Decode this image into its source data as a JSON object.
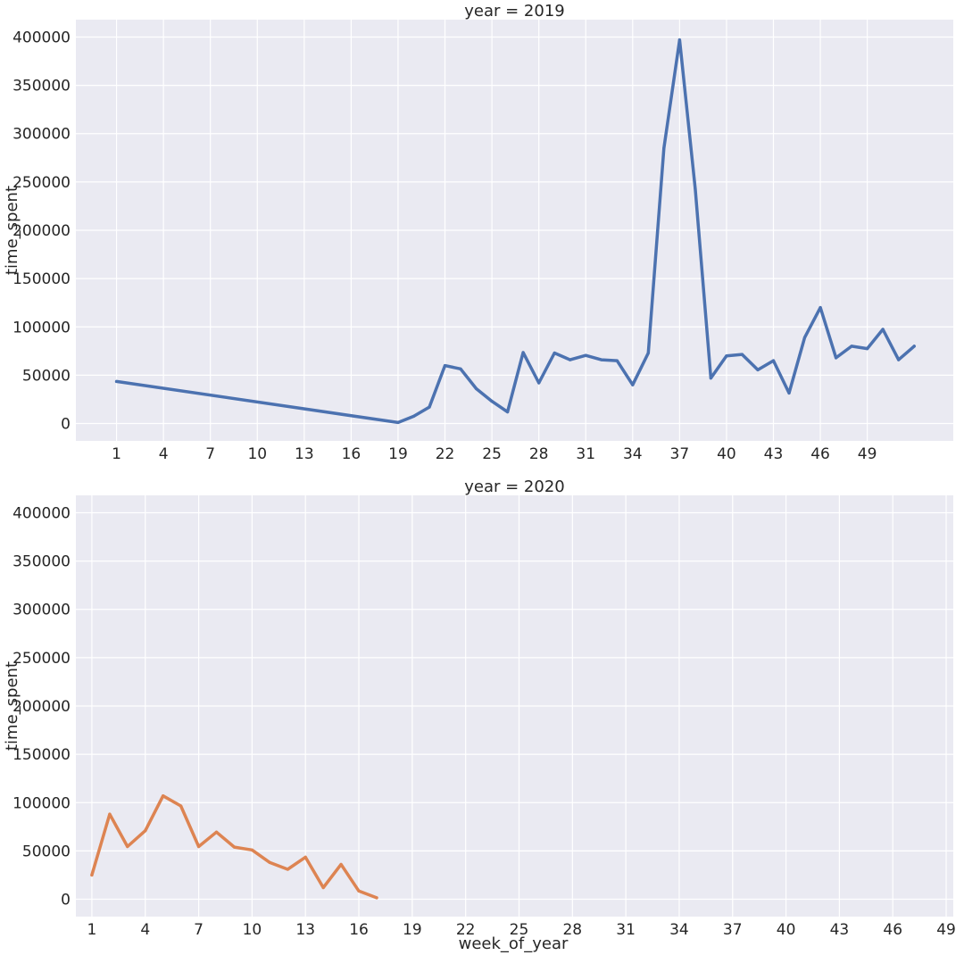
{
  "chart_data": [
    {
      "type": "line",
      "title": "year = 2019",
      "xlabel": "",
      "ylabel": "time_spent",
      "color": "#4c72b0",
      "xticks": [
        1,
        4,
        7,
        10,
        13,
        16,
        19,
        22,
        25,
        28,
        31,
        34,
        37,
        40,
        43,
        46,
        49
      ],
      "yticks": [
        0,
        50000,
        100000,
        150000,
        200000,
        250000,
        300000,
        350000,
        400000
      ],
      "xlim": [
        -1.6,
        54.5
      ],
      "ylim": [
        -18000,
        418000
      ],
      "grid": true,
      "x": [
        1,
        19,
        20,
        21,
        22,
        23,
        24,
        25,
        26,
        27,
        28,
        29,
        30,
        31,
        32,
        33,
        34,
        35,
        36,
        37,
        38,
        39,
        40,
        41,
        42,
        43,
        44,
        45,
        46,
        47,
        48,
        49,
        50,
        51,
        52
      ],
      "y": [
        43500,
        1000,
        7500,
        17000,
        60000,
        56500,
        36000,
        23000,
        12000,
        73500,
        42000,
        73000,
        66000,
        70500,
        66000,
        65000,
        40000,
        73000,
        285000,
        397000,
        243000,
        47000,
        70000,
        71500,
        55500,
        65000,
        31500,
        89000,
        120000,
        68000,
        80000,
        77500,
        97500,
        66000,
        80000
      ]
    },
    {
      "type": "line",
      "title": "year = 2020",
      "xlabel": "week_of_year",
      "ylabel": "time_spent",
      "color": "#dd8452",
      "xticks": [
        1,
        4,
        7,
        10,
        13,
        16,
        19,
        22,
        25,
        28,
        31,
        34,
        37,
        40,
        43,
        46,
        49
      ],
      "yticks": [
        0,
        50000,
        100000,
        150000,
        200000,
        250000,
        300000,
        350000,
        400000
      ],
      "xlim": [
        0.1,
        49.4
      ],
      "ylim": [
        -18000,
        418000
      ],
      "grid": true,
      "x": [
        1,
        2,
        3,
        4,
        5,
        6,
        7,
        8,
        9,
        10,
        11,
        12,
        13,
        14,
        15,
        16,
        17
      ],
      "y": [
        25000,
        88000,
        54500,
        71000,
        107000,
        96500,
        54500,
        69500,
        54000,
        51000,
        38000,
        31000,
        43500,
        12000,
        36000,
        8500,
        1500
      ]
    }
  ]
}
